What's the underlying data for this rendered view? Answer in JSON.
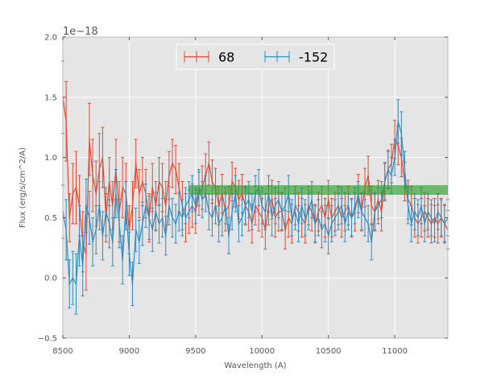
{
  "chart_data": {
    "type": "line",
    "title": "",
    "xlabel": "Wavelength (A)",
    "ylabel": "Flux (erg/s/cm^2/A)",
    "y_offset_label": "1e−18",
    "xlim": [
      8500,
      11400
    ],
    "ylim": [
      -0.5,
      2.0
    ],
    "xticks": [
      8500,
      9000,
      9500,
      10000,
      10500,
      11000
    ],
    "xtick_labels": [
      "8500",
      "9000",
      "9500",
      "10000",
      "10500",
      "11000"
    ],
    "yticks": [
      -0.5,
      0.0,
      0.5,
      1.0,
      1.5,
      2.0
    ],
    "ytick_labels": [
      "−0.5",
      "0.0",
      "0.5",
      "1.0",
      "1.5",
      "2.0"
    ],
    "grid": true,
    "background": "#e5e5e5",
    "legend_position": "top-center",
    "band": {
      "x_start": 9450,
      "x_end": 11400,
      "y_low": 0.69,
      "y_high": 0.77,
      "color": "#2ca02c"
    },
    "series": [
      {
        "name": "68",
        "color": "#e24a33",
        "x": [
          8500,
          8525,
          8550,
          8575,
          8600,
          8625,
          8650,
          8675,
          8700,
          8725,
          8750,
          8775,
          8800,
          8825,
          8850,
          8875,
          8900,
          8925,
          8950,
          8975,
          9000,
          9025,
          9050,
          9075,
          9100,
          9125,
          9150,
          9175,
          9200,
          9225,
          9250,
          9275,
          9300,
          9325,
          9350,
          9375,
          9400,
          9425,
          9450,
          9475,
          9500,
          9525,
          9550,
          9575,
          9600,
          9625,
          9650,
          9675,
          9700,
          9725,
          9750,
          9775,
          9800,
          9825,
          9850,
          9875,
          9900,
          9925,
          9950,
          9975,
          10000,
          10025,
          10050,
          10075,
          10100,
          10125,
          10150,
          10175,
          10200,
          10225,
          10250,
          10275,
          10300,
          10325,
          10350,
          10375,
          10400,
          10425,
          10450,
          10475,
          10500,
          10525,
          10550,
          10575,
          10600,
          10625,
          10650,
          10675,
          10700,
          10725,
          10750,
          10775,
          10800,
          10825,
          10850,
          10875,
          10900,
          10925,
          10950,
          10975,
          11000,
          11025,
          11050,
          11075,
          11100,
          11125,
          11150,
          11175,
          11200,
          11225,
          11250,
          11275,
          11300,
          11325,
          11350,
          11375,
          11400
        ],
        "y": [
          1.5,
          1.3,
          0.5,
          0.7,
          0.75,
          0.6,
          0.3,
          0.2,
          1.15,
          0.85,
          0.7,
          0.9,
          1.0,
          0.5,
          0.8,
          0.6,
          0.9,
          0.55,
          0.75,
          0.7,
          0.4,
          0.6,
          0.95,
          0.7,
          0.8,
          0.7,
          0.5,
          0.75,
          0.6,
          0.8,
          0.75,
          0.6,
          0.85,
          0.95,
          0.9,
          0.75,
          0.6,
          0.5,
          0.55,
          0.6,
          0.55,
          0.7,
          0.75,
          0.85,
          0.95,
          0.8,
          0.75,
          0.6,
          0.7,
          0.55,
          0.6,
          0.8,
          0.75,
          0.65,
          0.7,
          0.6,
          0.55,
          0.45,
          0.6,
          0.55,
          0.5,
          0.4,
          0.6,
          0.65,
          0.5,
          0.55,
          0.55,
          0.4,
          0.5,
          0.45,
          0.6,
          0.55,
          0.5,
          0.45,
          0.6,
          0.55,
          0.45,
          0.55,
          0.6,
          0.5,
          0.65,
          0.5,
          0.55,
          0.6,
          0.5,
          0.55,
          0.6,
          0.5,
          0.55,
          0.7,
          0.55,
          0.75,
          0.85,
          0.6,
          0.55,
          0.65,
          0.55,
          0.8,
          0.9,
          0.95,
          1.15,
          1.1,
          1.0,
          0.8,
          0.65,
          0.6,
          0.5,
          0.45,
          0.5,
          0.55,
          0.5,
          0.45,
          0.5,
          0.45,
          0.5,
          0.45,
          0.4
        ],
        "err": [
          0.3,
          0.33,
          0.2,
          0.25,
          0.3,
          0.25,
          0.25,
          0.3,
          0.3,
          0.3,
          0.27,
          0.3,
          0.25,
          0.2,
          0.2,
          0.2,
          0.25,
          0.25,
          0.25,
          0.25,
          0.2,
          0.2,
          0.2,
          0.2,
          0.2,
          0.2,
          0.2,
          0.2,
          0.2,
          0.2,
          0.2,
          0.2,
          0.2,
          0.2,
          0.2,
          0.2,
          0.2,
          0.2,
          0.18,
          0.18,
          0.18,
          0.18,
          0.18,
          0.18,
          0.18,
          0.18,
          0.16,
          0.16,
          0.16,
          0.16,
          0.16,
          0.16,
          0.16,
          0.16,
          0.16,
          0.16,
          0.16,
          0.16,
          0.16,
          0.16,
          0.16,
          0.16,
          0.16,
          0.16,
          0.16,
          0.16,
          0.16,
          0.16,
          0.16,
          0.16,
          0.16,
          0.16,
          0.16,
          0.16,
          0.16,
          0.16,
          0.16,
          0.16,
          0.16,
          0.16,
          0.16,
          0.16,
          0.16,
          0.16,
          0.16,
          0.16,
          0.16,
          0.16,
          0.16,
          0.16,
          0.16,
          0.16,
          0.16,
          0.16,
          0.16,
          0.16,
          0.16,
          0.16,
          0.16,
          0.16,
          0.16,
          0.16,
          0.16,
          0.16,
          0.16,
          0.16,
          0.16,
          0.16,
          0.16,
          0.16,
          0.16,
          0.16,
          0.16,
          0.16,
          0.16,
          0.16,
          0.16
        ]
      },
      {
        "name": "-152",
        "color": "#348abd",
        "x": [
          8500,
          8525,
          8550,
          8575,
          8600,
          8625,
          8650,
          8675,
          8700,
          8725,
          8750,
          8775,
          8800,
          8825,
          8850,
          8875,
          8900,
          8925,
          8950,
          8975,
          9000,
          9025,
          9050,
          9075,
          9100,
          9125,
          9150,
          9175,
          9200,
          9225,
          9250,
          9275,
          9300,
          9325,
          9350,
          9375,
          9400,
          9425,
          9450,
          9475,
          9500,
          9525,
          9550,
          9575,
          9600,
          9625,
          9650,
          9675,
          9700,
          9725,
          9750,
          9775,
          9800,
          9825,
          9850,
          9875,
          9900,
          9925,
          9950,
          9975,
          10000,
          10025,
          10050,
          10075,
          10100,
          10125,
          10150,
          10175,
          10200,
          10225,
          10250,
          10275,
          10300,
          10325,
          10350,
          10375,
          10400,
          10425,
          10450,
          10475,
          10500,
          10525,
          10550,
          10575,
          10600,
          10625,
          10650,
          10675,
          10700,
          10725,
          10750,
          10775,
          10800,
          10825,
          10850,
          10875,
          10900,
          10925,
          10950,
          10975,
          11000,
          11025,
          11050,
          11075,
          11100,
          11125,
          11150,
          11175,
          11200,
          11225,
          11250,
          11275,
          11300,
          11325,
          11350,
          11375,
          11400
        ],
        "y": [
          0.55,
          0.4,
          -0.05,
          0.0,
          -0.05,
          0.35,
          0.1,
          0.6,
          0.5,
          0.3,
          0.4,
          0.6,
          0.35,
          0.55,
          0.45,
          0.3,
          0.7,
          0.45,
          0.15,
          0.6,
          0.2,
          -0.05,
          0.4,
          0.3,
          0.45,
          0.6,
          0.5,
          0.4,
          0.55,
          0.45,
          0.5,
          0.35,
          0.6,
          0.5,
          0.45,
          0.55,
          0.5,
          0.6,
          0.65,
          0.7,
          0.6,
          0.75,
          0.65,
          0.7,
          0.55,
          0.5,
          0.6,
          0.45,
          0.5,
          0.6,
          0.35,
          0.55,
          0.7,
          0.45,
          0.5,
          0.6,
          0.65,
          0.55,
          0.7,
          0.75,
          0.6,
          0.55,
          0.7,
          0.5,
          0.6,
          0.65,
          0.55,
          0.6,
          0.7,
          0.5,
          0.55,
          0.45,
          0.6,
          0.5,
          0.55,
          0.65,
          0.45,
          0.5,
          0.4,
          0.45,
          0.35,
          0.45,
          0.5,
          0.55,
          0.6,
          0.45,
          0.55,
          0.5,
          0.6,
          0.65,
          0.55,
          0.5,
          0.45,
          0.3,
          0.55,
          0.6,
          0.65,
          0.8,
          0.9,
          0.85,
          1.0,
          1.3,
          1.2,
          0.9,
          0.6,
          0.45,
          0.55,
          0.5,
          0.6,
          0.45,
          0.55,
          0.5,
          0.45,
          0.55,
          0.5,
          0.45,
          0.5
        ],
        "err": [
          0.22,
          0.25,
          0.2,
          0.22,
          0.25,
          0.25,
          0.25,
          0.22,
          0.22,
          0.2,
          0.2,
          0.2,
          0.2,
          0.2,
          0.2,
          0.2,
          0.2,
          0.2,
          0.2,
          0.2,
          0.18,
          0.18,
          0.18,
          0.18,
          0.18,
          0.18,
          0.18,
          0.18,
          0.16,
          0.16,
          0.16,
          0.16,
          0.16,
          0.16,
          0.16,
          0.16,
          0.15,
          0.15,
          0.15,
          0.15,
          0.15,
          0.15,
          0.15,
          0.15,
          0.15,
          0.15,
          0.15,
          0.15,
          0.15,
          0.15,
          0.15,
          0.15,
          0.15,
          0.15,
          0.15,
          0.15,
          0.15,
          0.15,
          0.15,
          0.15,
          0.15,
          0.15,
          0.15,
          0.15,
          0.15,
          0.15,
          0.15,
          0.15,
          0.15,
          0.15,
          0.15,
          0.15,
          0.15,
          0.15,
          0.15,
          0.15,
          0.15,
          0.15,
          0.15,
          0.15,
          0.15,
          0.15,
          0.15,
          0.15,
          0.15,
          0.15,
          0.15,
          0.15,
          0.15,
          0.15,
          0.15,
          0.15,
          0.15,
          0.15,
          0.15,
          0.15,
          0.15,
          0.15,
          0.15,
          0.15,
          0.15,
          0.18,
          0.18,
          0.15,
          0.15,
          0.15,
          0.15,
          0.15,
          0.15,
          0.15,
          0.15,
          0.15,
          0.15,
          0.15,
          0.15,
          0.15,
          0.15
        ]
      }
    ]
  }
}
